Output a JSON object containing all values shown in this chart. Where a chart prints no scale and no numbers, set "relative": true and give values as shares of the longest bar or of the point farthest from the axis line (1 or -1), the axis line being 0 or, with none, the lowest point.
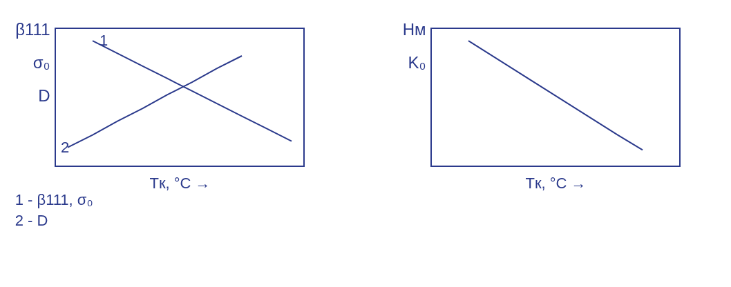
{
  "chart_data": [
    {
      "type": "line",
      "relative": true,
      "ylabel": "β111\nσ₀\nD",
      "xlabel": "Tк, °C →",
      "categories": [
        null,
        null,
        null,
        null,
        null,
        null,
        null,
        null,
        null,
        null
      ],
      "series": [
        {
          "name": "1",
          "color": "#2b3a8c",
          "values": [
            null,
            1,
            0.9,
            0.8,
            0.7,
            0.6,
            0.5,
            0.4,
            0.3,
            0.2
          ]
        },
        {
          "name": "2",
          "color": "#2b3a8c",
          "values": [
            0.15,
            0.25,
            0.36,
            0.46,
            0.57,
            0.67,
            0.78,
            0.88,
            null,
            null
          ]
        }
      ],
      "annotations": [
        "1 - β111, σ₀",
        "2 - D"
      ]
    },
    {
      "type": "line",
      "relative": true,
      "ylabel": "Hм\nK₀",
      "xlabel": "Tк, °C →",
      "categories": [
        null,
        null,
        null,
        null,
        null,
        null,
        null,
        null,
        null,
        null
      ],
      "series": [
        {
          "color": "#2b3a8c",
          "values": [
            null,
            1,
            0.875,
            0.75,
            0.625,
            0.5,
            0.375,
            0.25,
            0.13,
            null
          ]
        }
      ]
    }
  ]
}
